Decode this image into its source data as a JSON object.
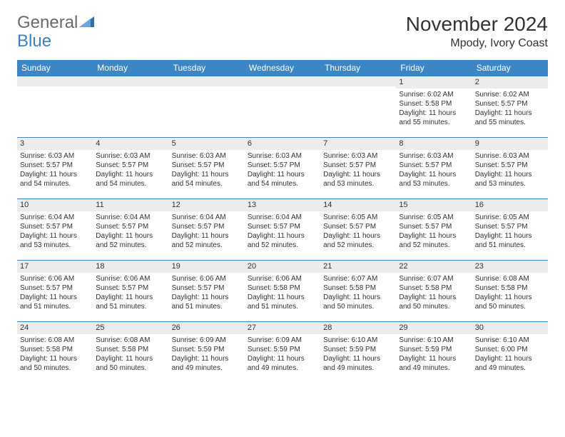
{
  "logo": {
    "text1": "General",
    "text2": "Blue"
  },
  "title": "November 2024",
  "location": "Mpody, Ivory Coast",
  "colors": {
    "header_bg": "#3d86c6",
    "header_text": "#ffffff",
    "daynum_bg": "#ececec",
    "border": "#3d86c6",
    "text": "#333333",
    "logo_gray": "#6a6a6a",
    "logo_blue": "#3d7fbf"
  },
  "weekdays": [
    "Sunday",
    "Monday",
    "Tuesday",
    "Wednesday",
    "Thursday",
    "Friday",
    "Saturday"
  ],
  "cell_fontsize": 10,
  "header_fontsize": 12,
  "title_fontsize": 28,
  "location_fontsize": 16,
  "weeks": [
    [
      {
        "day": "",
        "lines": []
      },
      {
        "day": "",
        "lines": []
      },
      {
        "day": "",
        "lines": []
      },
      {
        "day": "",
        "lines": []
      },
      {
        "day": "",
        "lines": []
      },
      {
        "day": "1",
        "lines": [
          "Sunrise: 6:02 AM",
          "Sunset: 5:58 PM",
          "Daylight: 11 hours and 55 minutes."
        ]
      },
      {
        "day": "2",
        "lines": [
          "Sunrise: 6:02 AM",
          "Sunset: 5:57 PM",
          "Daylight: 11 hours and 55 minutes."
        ]
      }
    ],
    [
      {
        "day": "3",
        "lines": [
          "Sunrise: 6:03 AM",
          "Sunset: 5:57 PM",
          "Daylight: 11 hours and 54 minutes."
        ]
      },
      {
        "day": "4",
        "lines": [
          "Sunrise: 6:03 AM",
          "Sunset: 5:57 PM",
          "Daylight: 11 hours and 54 minutes."
        ]
      },
      {
        "day": "5",
        "lines": [
          "Sunrise: 6:03 AM",
          "Sunset: 5:57 PM",
          "Daylight: 11 hours and 54 minutes."
        ]
      },
      {
        "day": "6",
        "lines": [
          "Sunrise: 6:03 AM",
          "Sunset: 5:57 PM",
          "Daylight: 11 hours and 54 minutes."
        ]
      },
      {
        "day": "7",
        "lines": [
          "Sunrise: 6:03 AM",
          "Sunset: 5:57 PM",
          "Daylight: 11 hours and 53 minutes."
        ]
      },
      {
        "day": "8",
        "lines": [
          "Sunrise: 6:03 AM",
          "Sunset: 5:57 PM",
          "Daylight: 11 hours and 53 minutes."
        ]
      },
      {
        "day": "9",
        "lines": [
          "Sunrise: 6:03 AM",
          "Sunset: 5:57 PM",
          "Daylight: 11 hours and 53 minutes."
        ]
      }
    ],
    [
      {
        "day": "10",
        "lines": [
          "Sunrise: 6:04 AM",
          "Sunset: 5:57 PM",
          "Daylight: 11 hours and 53 minutes."
        ]
      },
      {
        "day": "11",
        "lines": [
          "Sunrise: 6:04 AM",
          "Sunset: 5:57 PM",
          "Daylight: 11 hours and 52 minutes."
        ]
      },
      {
        "day": "12",
        "lines": [
          "Sunrise: 6:04 AM",
          "Sunset: 5:57 PM",
          "Daylight: 11 hours and 52 minutes."
        ]
      },
      {
        "day": "13",
        "lines": [
          "Sunrise: 6:04 AM",
          "Sunset: 5:57 PM",
          "Daylight: 11 hours and 52 minutes."
        ]
      },
      {
        "day": "14",
        "lines": [
          "Sunrise: 6:05 AM",
          "Sunset: 5:57 PM",
          "Daylight: 11 hours and 52 minutes."
        ]
      },
      {
        "day": "15",
        "lines": [
          "Sunrise: 6:05 AM",
          "Sunset: 5:57 PM",
          "Daylight: 11 hours and 52 minutes."
        ]
      },
      {
        "day": "16",
        "lines": [
          "Sunrise: 6:05 AM",
          "Sunset: 5:57 PM",
          "Daylight: 11 hours and 51 minutes."
        ]
      }
    ],
    [
      {
        "day": "17",
        "lines": [
          "Sunrise: 6:06 AM",
          "Sunset: 5:57 PM",
          "Daylight: 11 hours and 51 minutes."
        ]
      },
      {
        "day": "18",
        "lines": [
          "Sunrise: 6:06 AM",
          "Sunset: 5:57 PM",
          "Daylight: 11 hours and 51 minutes."
        ]
      },
      {
        "day": "19",
        "lines": [
          "Sunrise: 6:06 AM",
          "Sunset: 5:57 PM",
          "Daylight: 11 hours and 51 minutes."
        ]
      },
      {
        "day": "20",
        "lines": [
          "Sunrise: 6:06 AM",
          "Sunset: 5:58 PM",
          "Daylight: 11 hours and 51 minutes."
        ]
      },
      {
        "day": "21",
        "lines": [
          "Sunrise: 6:07 AM",
          "Sunset: 5:58 PM",
          "Daylight: 11 hours and 50 minutes."
        ]
      },
      {
        "day": "22",
        "lines": [
          "Sunrise: 6:07 AM",
          "Sunset: 5:58 PM",
          "Daylight: 11 hours and 50 minutes."
        ]
      },
      {
        "day": "23",
        "lines": [
          "Sunrise: 6:08 AM",
          "Sunset: 5:58 PM",
          "Daylight: 11 hours and 50 minutes."
        ]
      }
    ],
    [
      {
        "day": "24",
        "lines": [
          "Sunrise: 6:08 AM",
          "Sunset: 5:58 PM",
          "Daylight: 11 hours and 50 minutes."
        ]
      },
      {
        "day": "25",
        "lines": [
          "Sunrise: 6:08 AM",
          "Sunset: 5:58 PM",
          "Daylight: 11 hours and 50 minutes."
        ]
      },
      {
        "day": "26",
        "lines": [
          "Sunrise: 6:09 AM",
          "Sunset: 5:59 PM",
          "Daylight: 11 hours and 49 minutes."
        ]
      },
      {
        "day": "27",
        "lines": [
          "Sunrise: 6:09 AM",
          "Sunset: 5:59 PM",
          "Daylight: 11 hours and 49 minutes."
        ]
      },
      {
        "day": "28",
        "lines": [
          "Sunrise: 6:10 AM",
          "Sunset: 5:59 PM",
          "Daylight: 11 hours and 49 minutes."
        ]
      },
      {
        "day": "29",
        "lines": [
          "Sunrise: 6:10 AM",
          "Sunset: 5:59 PM",
          "Daylight: 11 hours and 49 minutes."
        ]
      },
      {
        "day": "30",
        "lines": [
          "Sunrise: 6:10 AM",
          "Sunset: 6:00 PM",
          "Daylight: 11 hours and 49 minutes."
        ]
      }
    ]
  ]
}
